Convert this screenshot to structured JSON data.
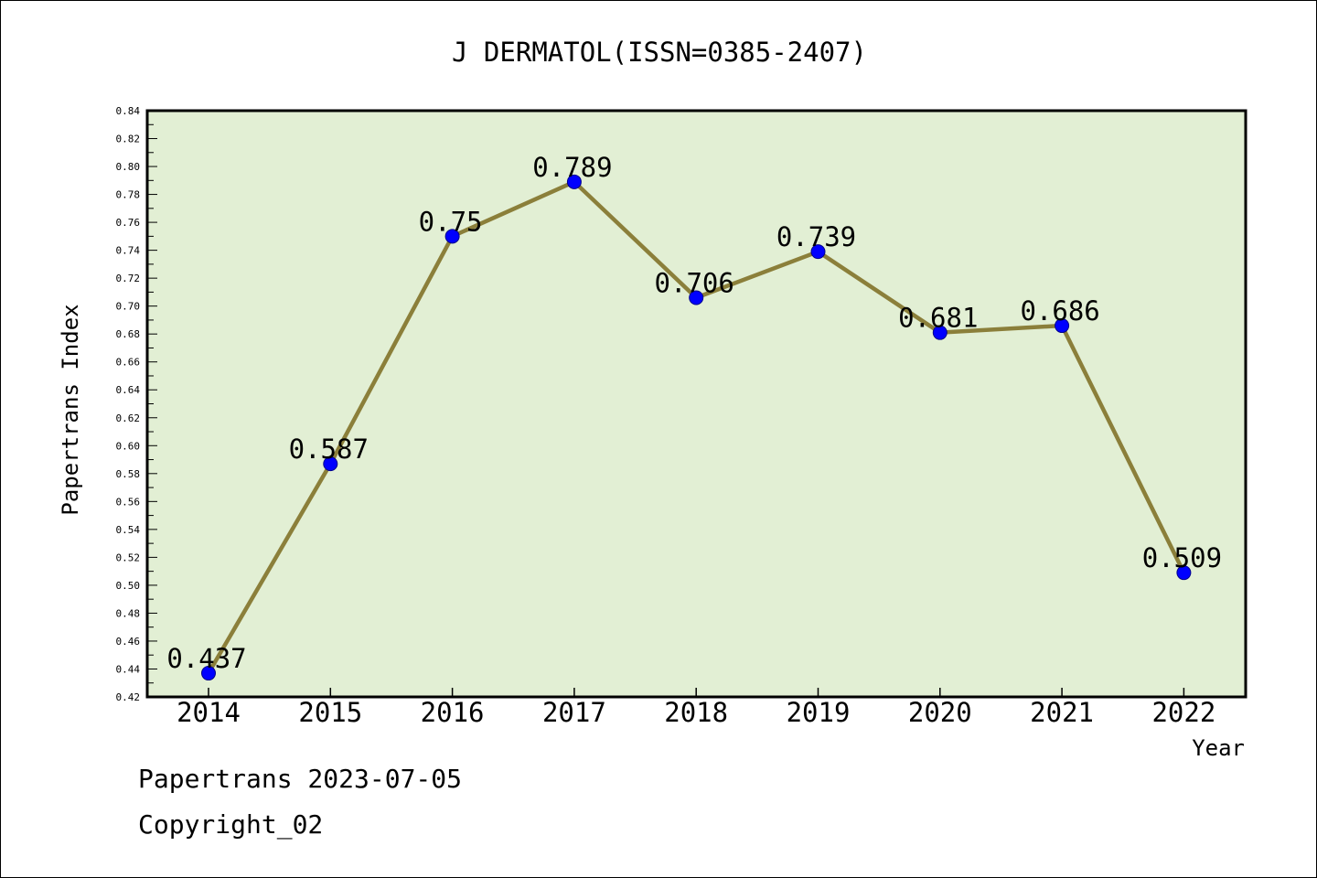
{
  "chart_data": {
    "type": "line",
    "title": "J DERMATOL(ISSN=0385-2407)",
    "xlabel": "Year",
    "ylabel": "Papertrans Index",
    "categories": [
      "2014",
      "2015",
      "2016",
      "2017",
      "2018",
      "2019",
      "2020",
      "2021",
      "2022"
    ],
    "series": [
      {
        "values": [
          0.437,
          0.587,
          0.75,
          0.789,
          0.706,
          0.739,
          0.681,
          0.686,
          0.509
        ],
        "labels": [
          "0.437",
          "0.587",
          "0.75",
          "0.789",
          "0.706",
          "0.739",
          "0.681",
          "0.686",
          "0.509"
        ]
      }
    ],
    "ylim": [
      0.42,
      0.84
    ],
    "ytick_step": 0.02,
    "yticks": [
      "0.42",
      "0.44",
      "0.46",
      "0.48",
      "0.50",
      "0.52",
      "0.54",
      "0.56",
      "0.58",
      "0.60",
      "0.62",
      "0.64",
      "0.66",
      "0.68",
      "0.70",
      "0.72",
      "0.74",
      "0.76",
      "0.78",
      "0.80",
      "0.82",
      "0.84"
    ],
    "grid": false,
    "legend": "none",
    "colors": {
      "plot_background": "#e2efd4",
      "line": "#8b7f3a",
      "marker": "#0000ff",
      "marker_edge": "#00008b"
    }
  },
  "footer": {
    "date_line": "Papertrans 2023-07-05",
    "copyright": "Copyright_02"
  }
}
